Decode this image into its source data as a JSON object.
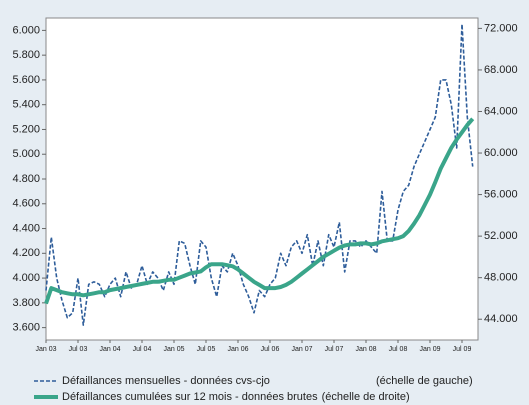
{
  "chart_data": {
    "type": "line",
    "categories": [
      "Jan 03",
      null,
      null,
      null,
      null,
      null,
      "Jul 03",
      null,
      null,
      null,
      null,
      null,
      "Jan 04",
      null,
      null,
      null,
      null,
      null,
      "Jul 04",
      null,
      null,
      null,
      null,
      null,
      "Jan 05",
      null,
      null,
      null,
      null,
      null,
      "Jul 05",
      null,
      null,
      null,
      null,
      null,
      "Jan 06",
      null,
      null,
      null,
      null,
      null,
      "Jul 06",
      null,
      null,
      null,
      null,
      null,
      "Jan 07",
      null,
      null,
      null,
      null,
      null,
      "Jul 07",
      null,
      null,
      null,
      null,
      null,
      "Jan 08",
      null,
      null,
      null,
      null,
      null,
      "Jul 08",
      null,
      null,
      null,
      null,
      null,
      "Jan 09",
      null,
      null,
      null,
      null,
      null,
      "Jul 09",
      null,
      null
    ],
    "series": [
      {
        "name": "Défaillances mensuelles - données cvs-cjo",
        "legend_note": "(échelle de gauche)",
        "color": "#2e5d9a",
        "dashed": true,
        "values": [
          3900,
          4330,
          4000,
          3820,
          3680,
          3720,
          4000,
          3620,
          3950,
          3970,
          3950,
          3850,
          3950,
          4000,
          3850,
          4050,
          3920,
          3950,
          4100,
          3950,
          4050,
          4000,
          3900,
          4050,
          3950,
          4300,
          4280,
          4100,
          3950,
          4300,
          4250,
          4000,
          3850,
          4100,
          4050,
          4200,
          4100,
          3950,
          3850,
          3720,
          3900,
          3850,
          3950,
          4000,
          4200,
          4100,
          4250,
          4300,
          4200,
          4350,
          4100,
          4300,
          4100,
          4350,
          4250,
          4450,
          4050,
          4300,
          4300,
          4250,
          4300,
          4250,
          4200,
          4700,
          4300,
          4300,
          4550,
          4700,
          4750,
          4900,
          5000,
          5100,
          5200,
          5300,
          5600,
          5600,
          5400,
          5050,
          6050,
          5300,
          4900
        ]
      },
      {
        "name": "Défaillances cumulées sur 12 mois - données brutes",
        "legend_note": "(échelle de droite)",
        "color": "#3aa58a",
        "axis": "y2",
        "values": [
          45500,
          47000,
          46800,
          46600,
          46500,
          46400,
          46400,
          46300,
          46400,
          46500,
          46600,
          46600,
          46800,
          46900,
          47000,
          47100,
          47200,
          47300,
          47400,
          47500,
          47600,
          47600,
          47700,
          47800,
          47800,
          48000,
          48200,
          48400,
          48500,
          48600,
          49000,
          49300,
          49300,
          49300,
          49200,
          49100,
          48800,
          48400,
          48000,
          47600,
          47300,
          47000,
          47000,
          47000,
          47100,
          47300,
          47600,
          48000,
          48400,
          48800,
          49200,
          49600,
          50000,
          50300,
          50600,
          50900,
          51100,
          51200,
          51200,
          51300,
          51300,
          51200,
          51300,
          51500,
          51600,
          51700,
          51800,
          52000,
          52500,
          53200,
          54000,
          55000,
          56000,
          57200,
          58500,
          59500,
          60500,
          61300,
          62000,
          62700,
          63300
        ]
      }
    ],
    "ylim": [
      3500,
      6100
    ],
    "yticks": [
      {
        "value": 3600,
        "label": "3.600"
      },
      {
        "value": 3800,
        "label": "3.800"
      },
      {
        "value": 4000,
        "label": "4.000"
      },
      {
        "value": 4200,
        "label": "4.200"
      },
      {
        "value": 4400,
        "label": "4.400"
      },
      {
        "value": 4600,
        "label": "4.600"
      },
      {
        "value": 4800,
        "label": "4.800"
      },
      {
        "value": 5000,
        "label": "5.000"
      },
      {
        "value": 5200,
        "label": "5.200"
      },
      {
        "value": 5400,
        "label": "5.400"
      },
      {
        "value": 5600,
        "label": "5.600"
      },
      {
        "value": 5800,
        "label": "5.800"
      },
      {
        "value": 6000,
        "label": "6.000"
      }
    ],
    "y2lim": [
      42000,
      73000
    ],
    "y2ticks": [
      {
        "value": 44000,
        "label": "44.000"
      },
      {
        "value": 48000,
        "label": "48.000"
      },
      {
        "value": 52000,
        "label": "52.000"
      },
      {
        "value": 56000,
        "label": "56.000"
      },
      {
        "value": 60000,
        "label": "60.000"
      },
      {
        "value": 64000,
        "label": "64.000"
      },
      {
        "value": 68000,
        "label": "68.000"
      },
      {
        "value": 72000,
        "label": "72.000"
      }
    ]
  }
}
